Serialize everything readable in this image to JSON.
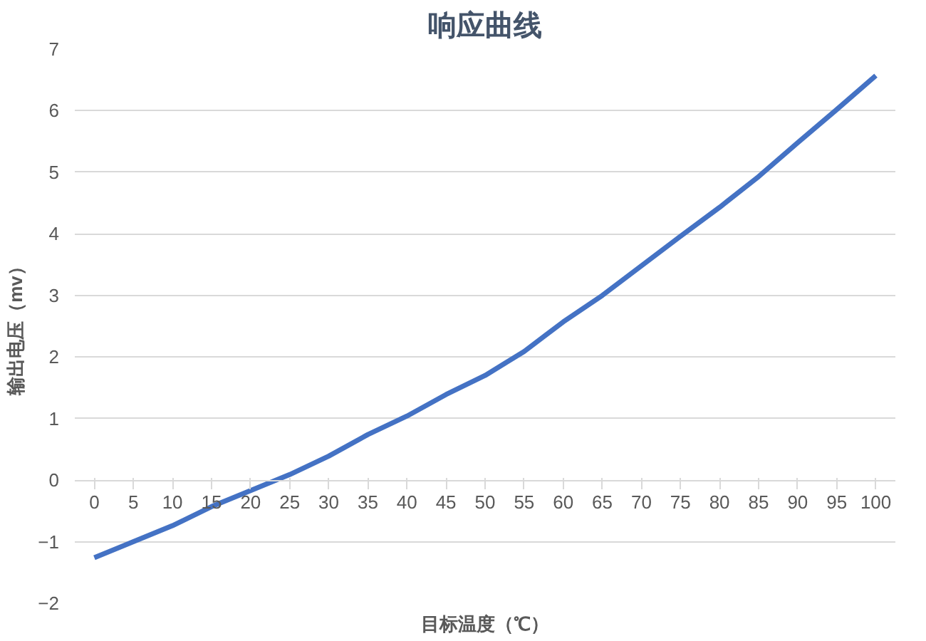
{
  "chart_data": {
    "type": "line",
    "title": "响应曲线",
    "xlabel": "目标温度（℃）",
    "ylabel": "输出电压（mv）",
    "x": [
      0,
      5,
      10,
      15,
      20,
      25,
      30,
      35,
      40,
      45,
      50,
      55,
      60,
      65,
      70,
      75,
      80,
      85,
      90,
      95,
      100
    ],
    "series": [
      {
        "color": "#4472c4",
        "values": [
          -1.26,
          -1.0,
          -0.74,
          -0.43,
          -0.17,
          0.09,
          0.39,
          0.74,
          1.04,
          1.39,
          1.7,
          2.09,
          2.57,
          3.0,
          3.48,
          3.96,
          4.43,
          4.93,
          5.48,
          6.02,
          6.57
        ]
      }
    ],
    "xlim": [
      0,
      100
    ],
    "xticks": [
      0,
      5,
      10,
      15,
      20,
      25,
      30,
      35,
      40,
      45,
      50,
      55,
      60,
      65,
      70,
      75,
      80,
      85,
      90,
      95,
      100
    ],
    "ylim": [
      -2,
      7
    ],
    "yticks": [
      -2,
      -1,
      0,
      1,
      2,
      3,
      4,
      5,
      6,
      7
    ],
    "grid": "y",
    "marker": "none",
    "line_style": "solid"
  }
}
